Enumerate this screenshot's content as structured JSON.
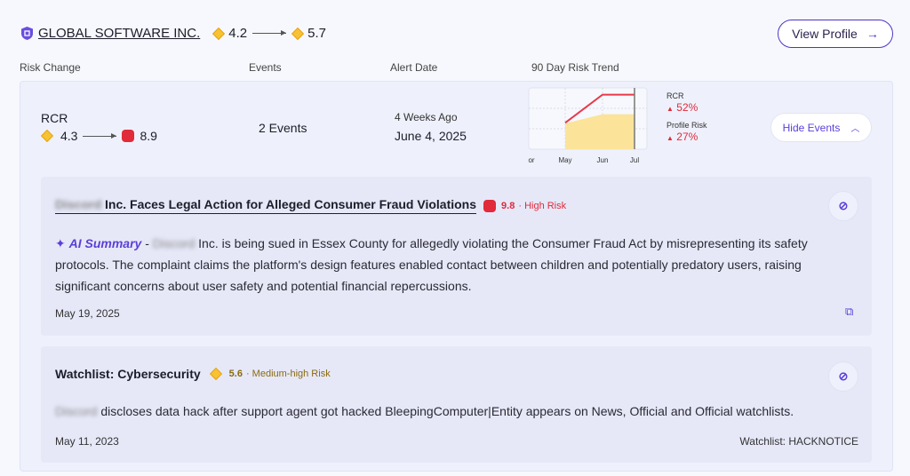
{
  "company": {
    "name": "GLOBAL SOFTWARE INC.",
    "score_from": "4.2",
    "score_to": "5.7"
  },
  "view_profile": "View Profile",
  "columns": [
    "Risk Change",
    "Events",
    "Alert Date",
    "90 Day Risk Trend"
  ],
  "row": {
    "metric": "RCR",
    "from": "4.3",
    "to": "8.9",
    "events": "2 Events",
    "alert_relative": "4 Weeks Ago",
    "alert_date": "June 4, 2025",
    "trend": {
      "rcr_label": "RCR",
      "rcr_change": "52%",
      "profile_label": "Profile Risk",
      "profile_change": "27%"
    },
    "hide_events": "Hide Events"
  },
  "chart_data": {
    "type": "line",
    "x": [
      "Apr",
      "May",
      "Jun",
      "Jul"
    ],
    "x_tick_labels": [
      "or",
      "May",
      "Jun",
      "Jul"
    ],
    "series": [
      {
        "name": "RCR",
        "values": [
          null,
          4.3,
          8.9,
          8.9
        ],
        "color": "#e8394a"
      },
      {
        "name": "Profile Risk",
        "values": [
          null,
          4.2,
          5.7,
          5.7
        ],
        "color": "#fbe39a",
        "style": "area"
      }
    ],
    "ylim": [
      0,
      10
    ],
    "grid": true
  },
  "events": [
    {
      "title_blurred": "Discord",
      "title": "Inc. Faces Legal Action for Alleged Consumer Fraud Violations",
      "score": "9.8",
      "risk": "High Risk",
      "ai_label": "AI Summary",
      "sep": "-",
      "body_blurred": "Discord",
      "body": "Inc. is being sued in Essex County for allegedly violating the Consumer Fraud Act by misrepresenting its safety protocols. The complaint claims the platform's design features enabled contact between children and potentially predatory users, raising significant concerns about user safety and potential financial repercussions.",
      "date": "May 19, 2025"
    },
    {
      "title": "Watchlist: Cybersecurity",
      "score": "5.6",
      "risk": "Medium-high Risk",
      "body_blurred": "Discord",
      "body": "discloses data hack after support agent got hacked BleepingComputer|Entity appears on News, Official and Official watchlists.",
      "date": "May 11, 2023",
      "watchlist": "Watchlist: HACKNOTICE"
    }
  ],
  "colors": {
    "accent": "#5b3fd8",
    "high": "#e12a3a",
    "medium": "#f7c234"
  }
}
